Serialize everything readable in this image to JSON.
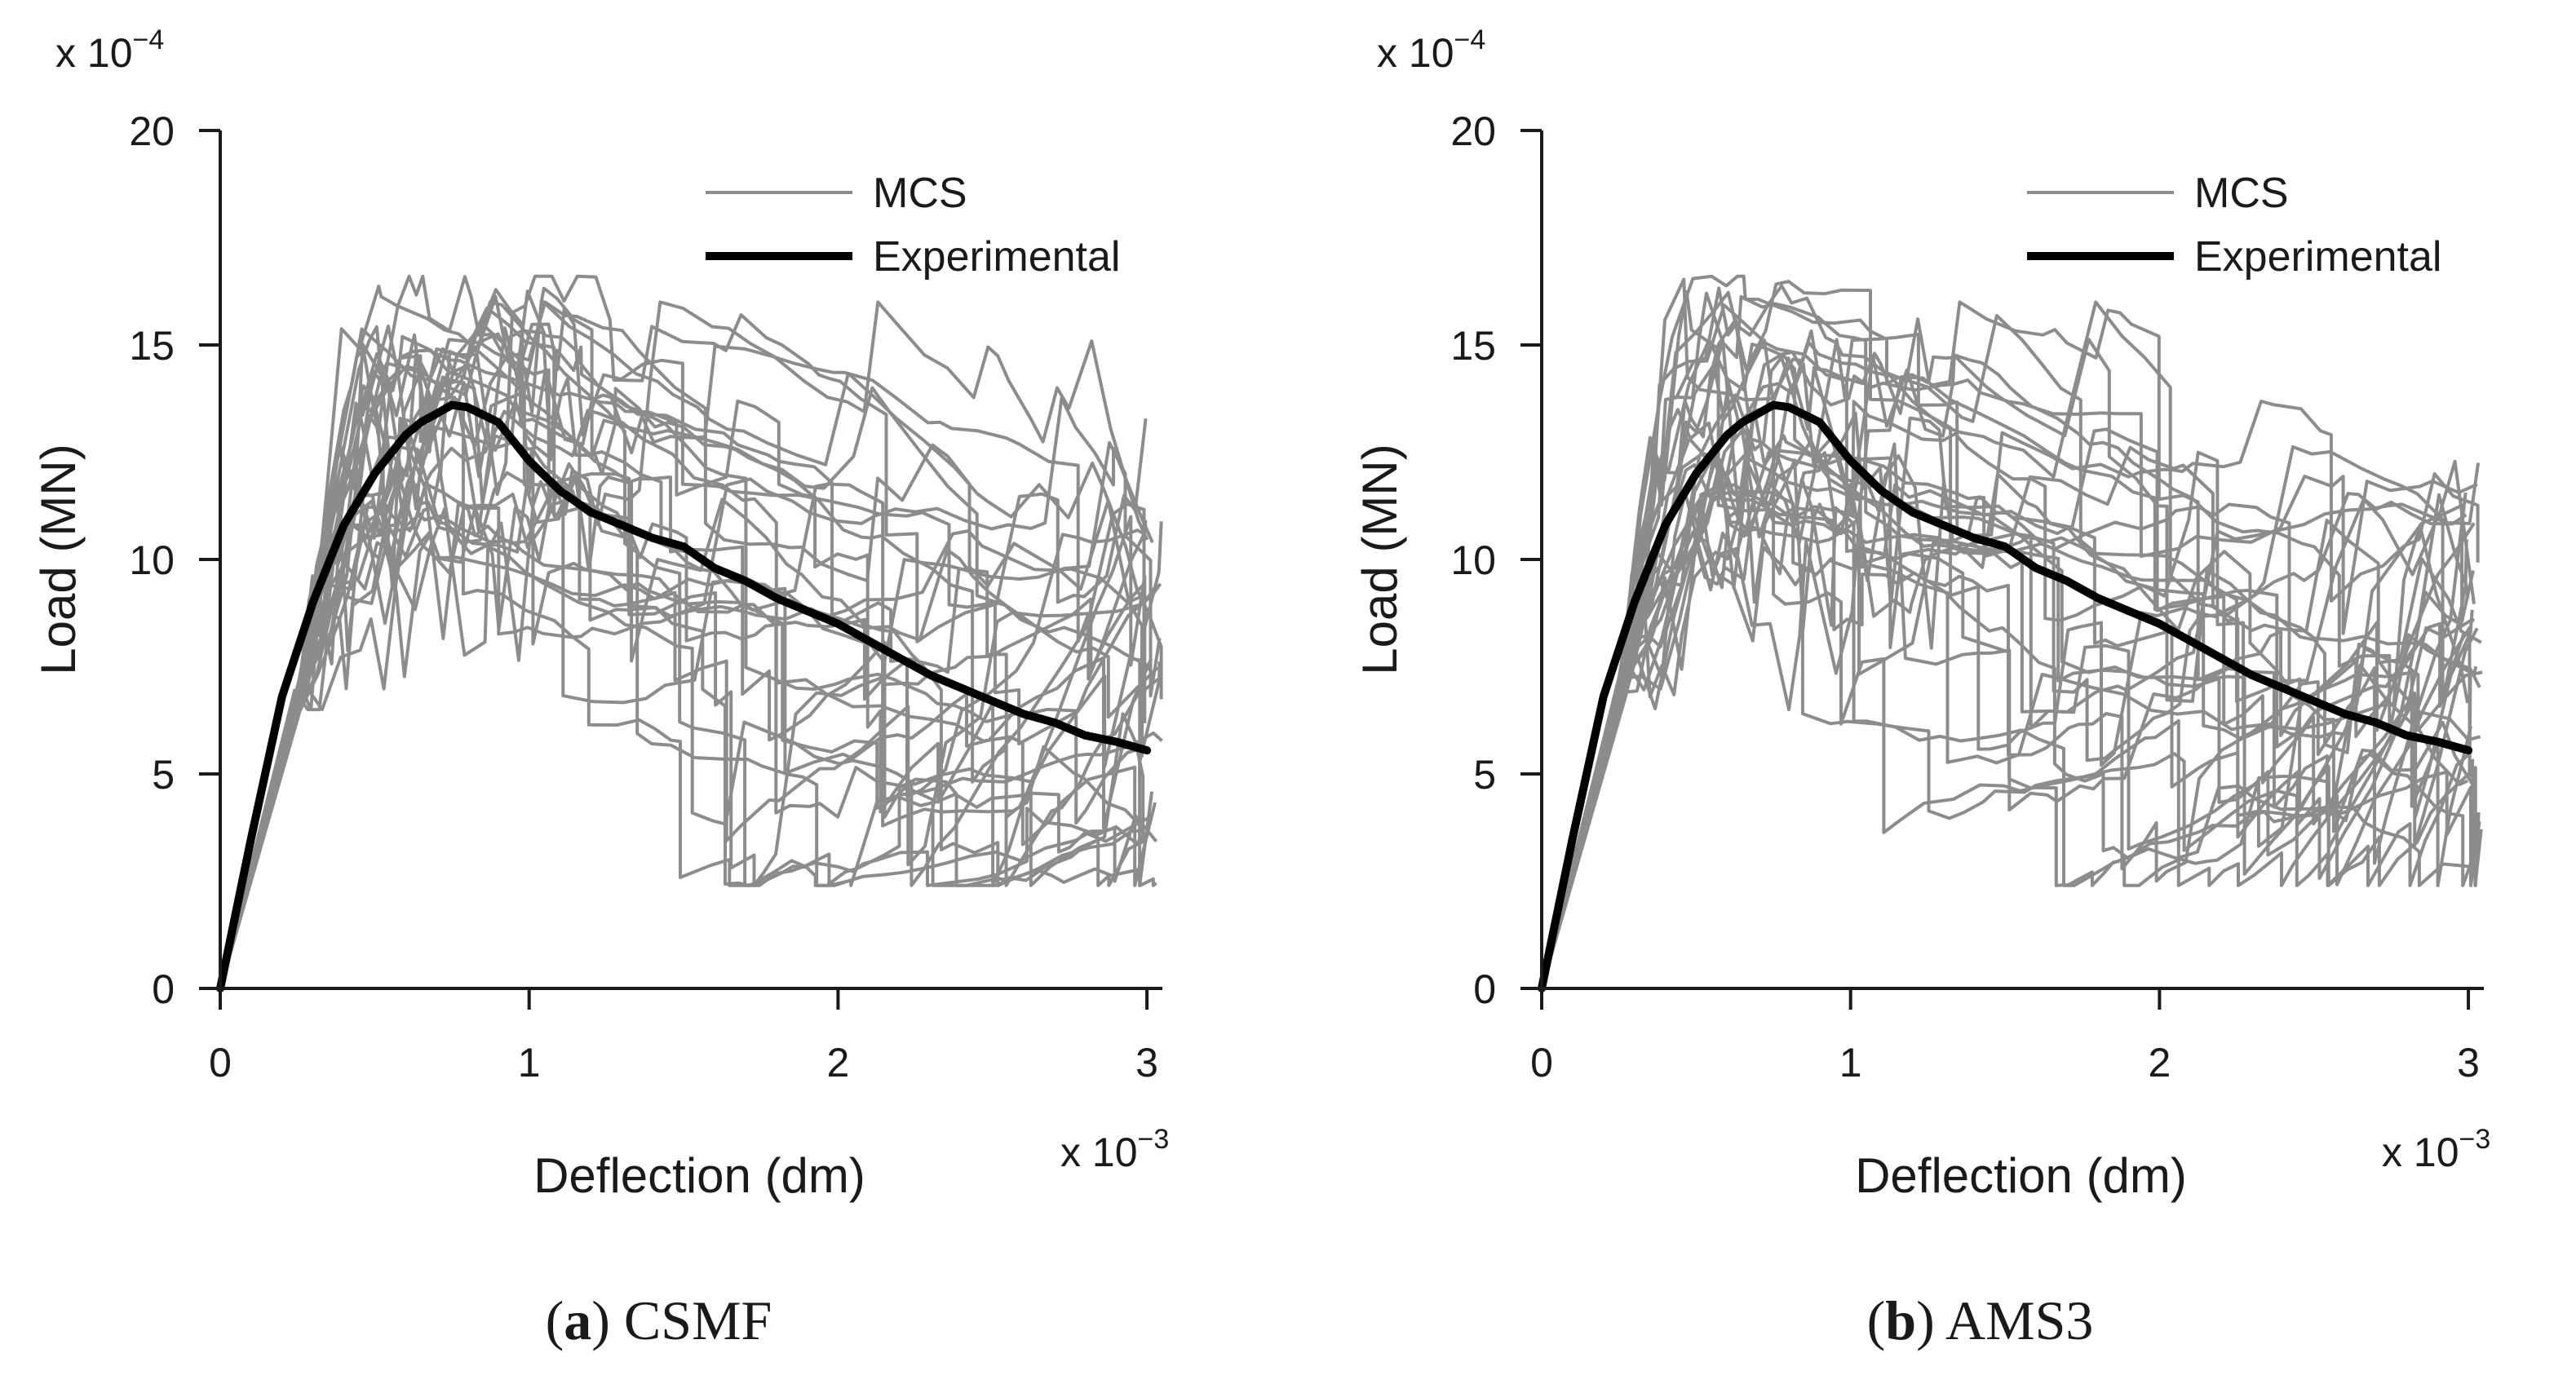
{
  "chart_data": [
    {
      "type": "line",
      "panel": "a",
      "caption": {
        "letter": "a",
        "name": "CSMF"
      },
      "xlabel": "Deflection (dm)",
      "ylabel": "Load (MN)",
      "x_multiplier": "x 10",
      "x_multiplier_exp": "−3",
      "y_multiplier": "x 10",
      "y_multiplier_exp": "−4",
      "xlim": [
        0,
        3.05
      ],
      "ylim": [
        0,
        20
      ],
      "xticks": [
        0,
        1,
        2,
        3
      ],
      "yticks": [
        0,
        5,
        10,
        15,
        20
      ],
      "legend": [
        {
          "name": "MCS",
          "color": "#8c8c8c"
        },
        {
          "name": "Experimental",
          "color": "#000000"
        }
      ],
      "seed": 11,
      "experimental": {
        "name": "Experimental",
        "x": [
          0,
          0.1,
          0.2,
          0.3,
          0.4,
          0.5,
          0.6,
          0.65,
          0.7,
          0.75,
          0.8,
          0.9,
          1.0,
          1.1,
          1.2,
          1.3,
          1.4,
          1.5,
          1.6,
          1.7,
          1.8,
          1.9,
          2.0,
          2.1,
          2.2,
          2.3,
          2.4,
          2.5,
          2.6,
          2.7,
          2.8,
          2.9,
          3.0
        ],
        "y": [
          0,
          3.5,
          6.8,
          9.0,
          10.8,
          12.0,
          12.9,
          13.2,
          13.4,
          13.6,
          13.55,
          13.2,
          12.3,
          11.6,
          11.1,
          10.8,
          10.5,
          10.3,
          9.8,
          9.5,
          9.1,
          8.8,
          8.5,
          8.1,
          7.7,
          7.3,
          7.0,
          6.7,
          6.4,
          6.2,
          5.9,
          5.75,
          5.55
        ]
      },
      "mcs_count": 30
    },
    {
      "type": "line",
      "panel": "b",
      "caption": {
        "letter": "b",
        "name": "AMS3"
      },
      "xlabel": "Deflection (dm)",
      "ylabel": "Load (MN)",
      "x_multiplier": "x 10",
      "x_multiplier_exp": "−3",
      "y_multiplier": "x 10",
      "y_multiplier_exp": "−4",
      "xlim": [
        0,
        3.05
      ],
      "ylim": [
        0,
        20
      ],
      "xticks": [
        0,
        1,
        2,
        3
      ],
      "yticks": [
        0,
        5,
        10,
        15,
        20
      ],
      "legend": [
        {
          "name": "MCS",
          "color": "#8c8c8c"
        },
        {
          "name": "Experimental",
          "color": "#000000"
        }
      ],
      "seed": 27,
      "experimental": {
        "name": "Experimental",
        "x": [
          0,
          0.1,
          0.2,
          0.3,
          0.4,
          0.5,
          0.6,
          0.65,
          0.7,
          0.75,
          0.8,
          0.9,
          1.0,
          1.1,
          1.2,
          1.3,
          1.4,
          1.5,
          1.6,
          1.7,
          1.8,
          1.9,
          2.0,
          2.1,
          2.2,
          2.3,
          2.4,
          2.5,
          2.6,
          2.7,
          2.8,
          2.9,
          3.0
        ],
        "y": [
          0,
          3.5,
          6.8,
          9.0,
          10.8,
          12.0,
          12.9,
          13.2,
          13.4,
          13.6,
          13.55,
          13.2,
          12.3,
          11.6,
          11.1,
          10.8,
          10.5,
          10.3,
          9.8,
          9.5,
          9.1,
          8.8,
          8.5,
          8.1,
          7.7,
          7.3,
          7.0,
          6.7,
          6.4,
          6.2,
          5.9,
          5.75,
          5.55
        ]
      },
      "mcs_count": 30
    }
  ]
}
